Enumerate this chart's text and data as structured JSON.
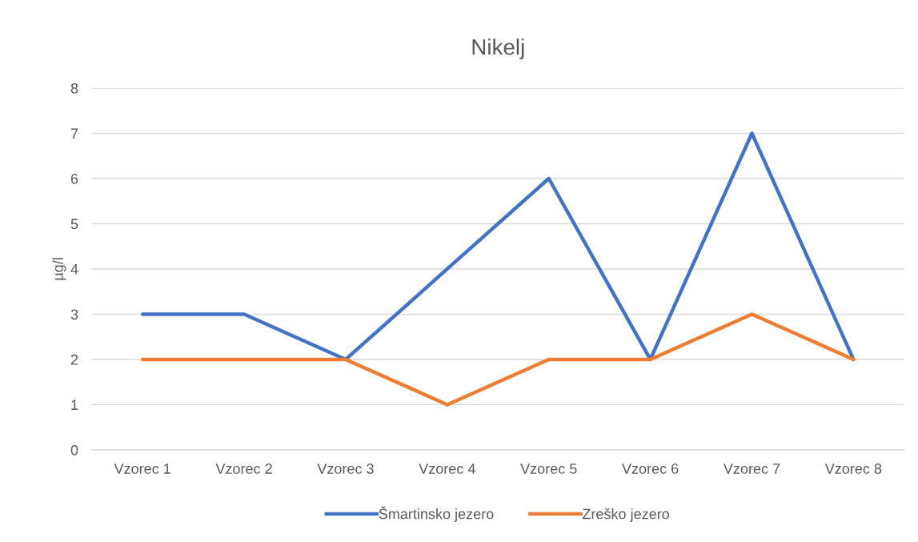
{
  "chart_data": {
    "type": "line",
    "title": "Nikelj",
    "ylabel": "µg/l",
    "categories": [
      "Vzorec 1",
      "Vzorec 2",
      "Vzorec 3",
      "Vzorec 4",
      "Vzorec 5",
      "Vzorec 6",
      "Vzorec 7",
      "Vzorec 8"
    ],
    "series": [
      {
        "name": "Šmartinsko jezero",
        "color": "#4472c4",
        "values": [
          3,
          3,
          2,
          4,
          6,
          2,
          7,
          2
        ]
      },
      {
        "name": "Zreško jezero",
        "color": "#ed7d31",
        "values": [
          2,
          2,
          2,
          1,
          2,
          2,
          3,
          2
        ]
      }
    ],
    "ylim": [
      0,
      8
    ],
    "yticks": [
      0,
      1,
      2,
      3,
      4,
      5,
      6,
      7,
      8
    ],
    "grid": "y",
    "legend": "bottom",
    "marker": "none",
    "line_style": "solid"
  }
}
